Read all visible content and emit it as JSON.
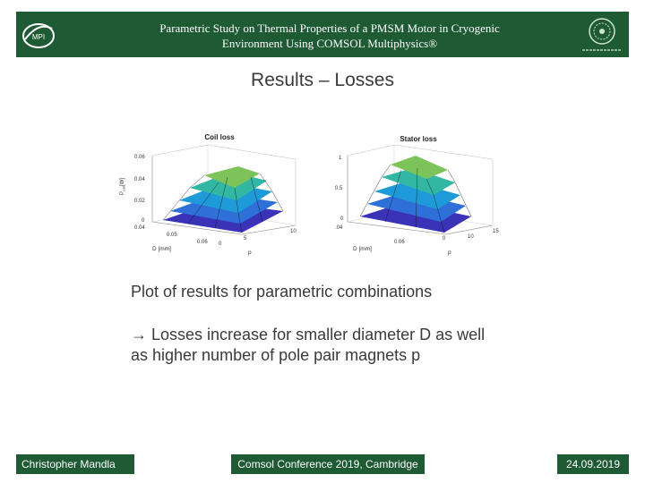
{
  "header": {
    "title_line1": "Parametric Study on Thermal Properties of a PMSM Motor in Cryogenic",
    "title_line2": "Environment Using COMSOL Multiphysics®",
    "left_logo_icon": "institute-logo-icon",
    "right_logo_icon": "university-seal-icon",
    "color": "#1e5a34"
  },
  "slide": {
    "title": "Results – Losses",
    "text1": "Plot of results for parametric combinations",
    "text2_line1": "→ Losses increase for smaller diameter D as well",
    "text2_line2": "as higher number of pole pair magnets p"
  },
  "chart_data": [
    {
      "type": "surface",
      "title": "Coil loss",
      "zlabel": "P",
      "zlabel_sub": "coil",
      "zlabel_unit": "[W]",
      "xlabel": "D [mm]",
      "ylabel": "p",
      "z_ticks": [
        "0.06",
        "0.04",
        "0.02",
        "0"
      ],
      "x_ticks": [
        "0.04",
        "0.05",
        "0.06"
      ],
      "y_ticks": [
        "0",
        "5",
        "10"
      ],
      "zlim": [
        0,
        0.06
      ]
    },
    {
      "type": "surface",
      "title": "Stator loss",
      "xlabel": "D [mm]",
      "ylabel": "p",
      "z_ticks": [
        "1",
        "0.5",
        "0"
      ],
      "x_ticks": ".04",
      "x_ticks_list": [
        ".04",
        "0.06"
      ],
      "y_ticks": [
        "0",
        "10",
        "15"
      ],
      "zlim": [
        0,
        1
      ]
    }
  ],
  "footer": {
    "author": "Christopher Mandla",
    "event": "Comsol Conference 2019, Cambridge",
    "date": "24.09.2019"
  }
}
